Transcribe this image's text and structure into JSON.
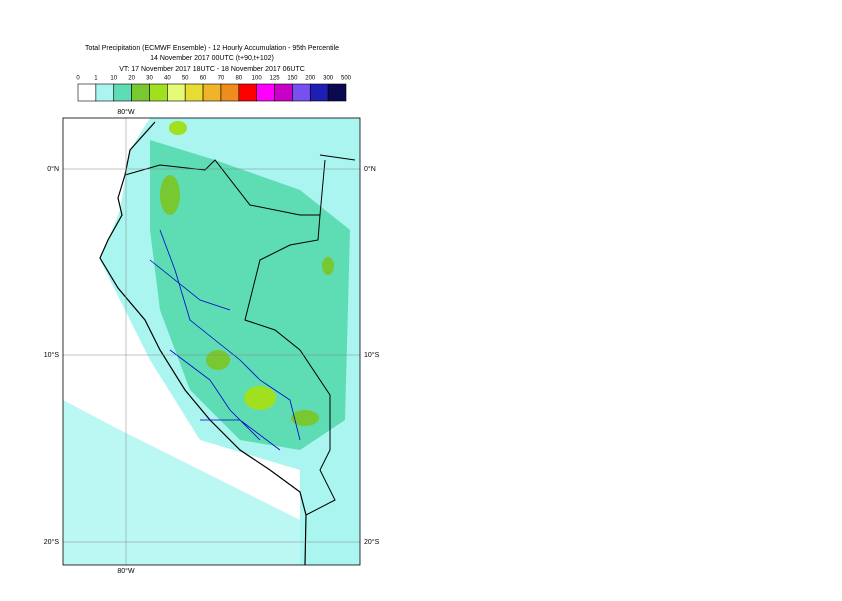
{
  "header": {
    "title": "Total Precipitation (ECMWF Ensemble) - 12 Hourly Accumulation - 95th Percentile",
    "base_time": "14 November 2017 00UTC (t+90,t+102)",
    "valid_time": "VT: 17 November 2017 18UTC - 18 November 2017 06UTC"
  },
  "legend": {
    "bounds": [
      0,
      1,
      10,
      20,
      30,
      40,
      50,
      60,
      70,
      80,
      100,
      125,
      150,
      200,
      300,
      500
    ],
    "colors": [
      "#ffffff",
      "#aaf5f0",
      "#5edcb4",
      "#78c832",
      "#a0e01e",
      "#e6fa78",
      "#e6dc32",
      "#f0b428",
      "#f08c1e",
      "#ff0000",
      "#ff00ff",
      "#c800c8",
      "#7850f0",
      "#1e1eb4",
      "#0a0a50"
    ]
  },
  "map": {
    "lon_labels": [
      "80°W"
    ],
    "lat_labels": [
      "0°N",
      "10°S",
      "20°S"
    ]
  }
}
